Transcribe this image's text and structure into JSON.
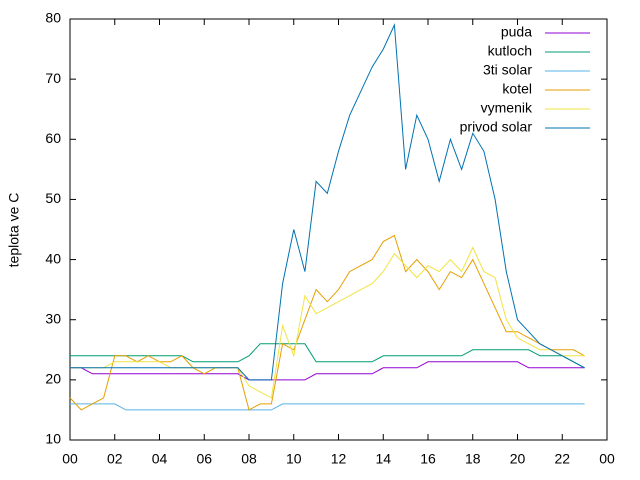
{
  "chart_data": {
    "type": "line",
    "y_label": "teplota ve C",
    "x": [
      0,
      0.5,
      1,
      1.5,
      2,
      2.5,
      3,
      3.5,
      4,
      4.5,
      5,
      5.5,
      6,
      6.5,
      7,
      7.5,
      8,
      8.5,
      9,
      9.5,
      10,
      10.5,
      11,
      11.5,
      12,
      12.5,
      13,
      13.5,
      14,
      14.5,
      15,
      15.5,
      16,
      16.5,
      17,
      17.5,
      18,
      18.5,
      19,
      19.5,
      20,
      20.5,
      21,
      21.5,
      22,
      22.5,
      23
    ],
    "xlim": [
      0,
      24
    ],
    "xticks": [
      {
        "value": 0,
        "label": "00"
      },
      {
        "value": 2,
        "label": "02"
      },
      {
        "value": 4,
        "label": "04"
      },
      {
        "value": 6,
        "label": "06"
      },
      {
        "value": 8,
        "label": "08"
      },
      10,
      12,
      14,
      16,
      18,
      20,
      22,
      {
        "value": 24,
        "label": "00"
      }
    ],
    "ylim": [
      10,
      80
    ],
    "yticks": [
      10,
      20,
      30,
      40,
      50,
      60,
      70,
      80
    ],
    "legend": "top-right",
    "series": [
      {
        "name": "puda",
        "color": "#9400d3",
        "values": [
          22,
          22,
          21,
          21,
          21,
          21,
          21,
          21,
          21,
          21,
          21,
          21,
          21,
          21,
          21,
          21,
          20,
          20,
          20,
          20,
          20,
          20,
          21,
          21,
          21,
          21,
          21,
          21,
          22,
          22,
          22,
          22,
          23,
          23,
          23,
          23,
          23,
          23,
          23,
          23,
          23,
          22,
          22,
          22,
          22,
          22,
          22
        ]
      },
      {
        "name": "kutloch",
        "color": "#009e73",
        "values": [
          24,
          24,
          24,
          24,
          24,
          24,
          24,
          24,
          24,
          24,
          24,
          23,
          23,
          23,
          23,
          23,
          24,
          26,
          26,
          26,
          26,
          26,
          23,
          23,
          23,
          23,
          23,
          23,
          24,
          24,
          24,
          24,
          24,
          24,
          24,
          24,
          25,
          25,
          25,
          25,
          25,
          25,
          24,
          24,
          24,
          23,
          22
        ]
      },
      {
        "name": "3ti solar",
        "color": "#56b4e9",
        "values": [
          16,
          16,
          16,
          16,
          16,
          15,
          15,
          15,
          15,
          15,
          15,
          15,
          15,
          15,
          15,
          15,
          15,
          15,
          15,
          16,
          16,
          16,
          16,
          16,
          16,
          16,
          16,
          16,
          16,
          16,
          16,
          16,
          16,
          16,
          16,
          16,
          16,
          16,
          16,
          16,
          16,
          16,
          16,
          16,
          16,
          16,
          16
        ]
      },
      {
        "name": "kotel",
        "color": "#e69f00",
        "values": [
          17,
          15,
          16,
          17,
          24,
          24,
          23,
          24,
          23,
          23,
          24,
          22,
          21,
          22,
          22,
          22,
          15,
          16,
          16,
          26,
          25,
          30,
          35,
          33,
          35,
          38,
          39,
          40,
          43,
          44,
          38,
          40,
          38,
          35,
          38,
          37,
          40,
          36,
          32,
          28,
          28,
          27,
          26,
          25,
          25,
          25,
          24
        ]
      },
      {
        "name": "vymenik",
        "color": "#f0e442",
        "values": [
          22,
          22,
          22,
          22,
          23,
          23,
          23,
          23,
          23,
          22,
          22,
          22,
          22,
          22,
          22,
          22,
          19,
          18,
          17,
          29,
          24,
          34,
          31,
          32,
          33,
          34,
          35,
          36,
          38,
          41,
          39,
          37,
          39,
          38,
          40,
          38,
          42,
          38,
          37,
          30,
          27,
          26,
          25,
          25,
          24,
          24,
          24
        ]
      },
      {
        "name": "privod solar",
        "color": "#0072b2",
        "values": [
          22,
          22,
          22,
          22,
          22,
          22,
          22,
          22,
          22,
          22,
          22,
          22,
          22,
          22,
          22,
          22,
          20,
          20,
          20,
          36,
          45,
          38,
          53,
          51,
          58,
          64,
          68,
          72,
          75,
          79,
          55,
          64,
          60,
          53,
          60,
          55,
          61,
          58,
          50,
          38,
          30,
          28,
          26,
          25,
          24,
          23,
          22
        ]
      }
    ]
  }
}
